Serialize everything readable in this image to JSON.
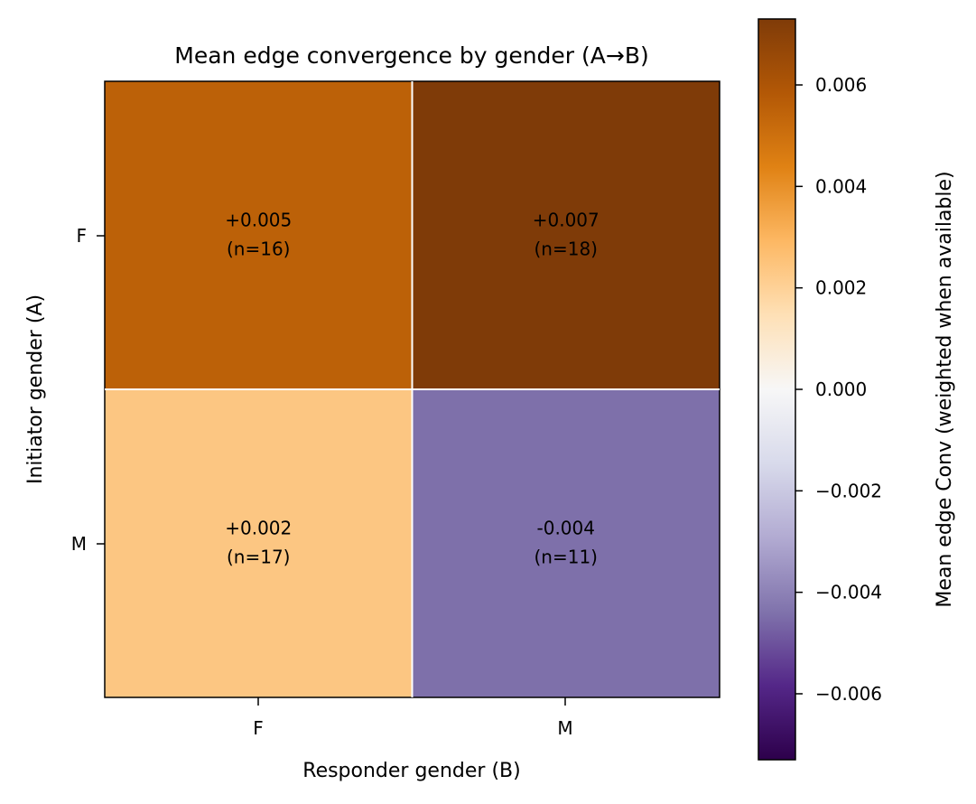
{
  "chart_data": {
    "type": "heatmap",
    "title": "Mean edge convergence by gender (A→B)",
    "xlabel": "Responder gender (B)",
    "ylabel": "Initiator gender (A)",
    "x_categories": [
      "F",
      "M"
    ],
    "y_categories": [
      "F",
      "M"
    ],
    "cells": [
      {
        "row": "F",
        "col": "F",
        "value": 0.005,
        "label": "+0.005",
        "n_label": "(n=16)"
      },
      {
        "row": "F",
        "col": "M",
        "value": 0.007,
        "label": "+0.007",
        "n_label": "(n=18)"
      },
      {
        "row": "M",
        "col": "F",
        "value": 0.002,
        "label": "+0.002",
        "n_label": "(n=17)"
      },
      {
        "row": "M",
        "col": "M",
        "value": -0.004,
        "label": "-0.004",
        "n_label": "(n=11)"
      }
    ],
    "colorbar": {
      "label": "Mean edge Conv (weighted when available)",
      "range": [
        -0.0073,
        0.0073
      ],
      "ticks": [
        0.006,
        0.004,
        0.002,
        0.0,
        -0.002,
        -0.004,
        -0.006
      ],
      "tick_labels": [
        "0.006",
        "0.004",
        "0.002",
        "0.000",
        "−0.002",
        "−0.004",
        "−0.006"
      ],
      "colormap": "PuOr_r"
    },
    "colors": {
      "F-F": "#bc6108",
      "F-M": "#7f3b08",
      "M-F": "#fcc682",
      "M-M": "#7e70aa"
    }
  }
}
